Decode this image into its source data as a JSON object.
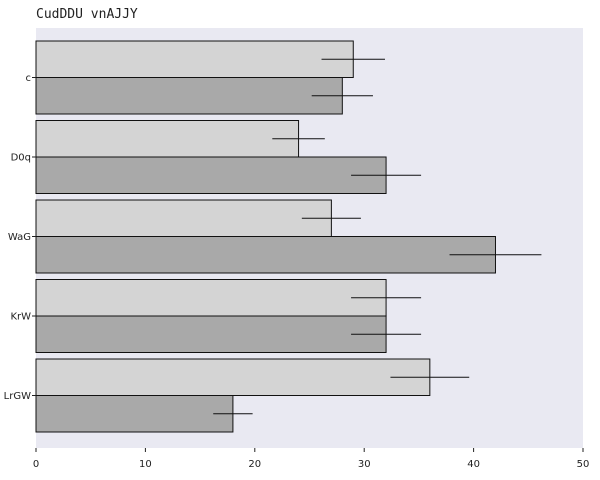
{
  "chart_data": {
    "type": "bar",
    "orientation": "horizontal",
    "title": "CudDDU vnAJJY",
    "xlabel": "",
    "ylabel": "",
    "categories": [
      "c",
      "D0q",
      "WaG",
      "KrW",
      "LrGW"
    ],
    "xlim": [
      0,
      50
    ],
    "xticks": [
      0,
      10,
      20,
      30,
      40,
      50
    ],
    "grid": false,
    "background": "#e9e9f2",
    "series": [
      {
        "color": "#d4d4d4",
        "values": [
          29,
          24,
          27,
          32,
          36
        ],
        "errors": [
          2.9,
          2.4,
          2.7,
          3.2,
          3.6
        ]
      },
      {
        "color": "#a9a9a9",
        "values": [
          28,
          32,
          42,
          32,
          18
        ],
        "errors": [
          2.8,
          3.2,
          4.2,
          3.2,
          1.8
        ]
      }
    ]
  }
}
